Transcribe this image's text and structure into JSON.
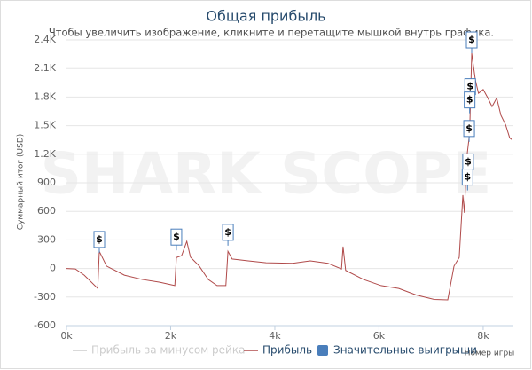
{
  "chart_data": {
    "type": "line",
    "title": "Общая прибыль",
    "subtitle": "Чтобы увеличить изображение, кликните и перетащите мышкой внутрь графика.",
    "watermark": "SHARK SCOPE",
    "y_label": "Суммарный итог (USD)",
    "x_label": "Номер игры",
    "xlim": [
      0,
      8580
    ],
    "ylim": [
      -600,
      2400
    ],
    "xticks": [
      {
        "value": 0,
        "label": "0k"
      },
      {
        "value": 2000,
        "label": "2k"
      },
      {
        "value": 4000,
        "label": "4k"
      },
      {
        "value": 6000,
        "label": "6k"
      },
      {
        "value": 8000,
        "label": "8k"
      }
    ],
    "yticks": [
      -600,
      -300,
      0,
      300,
      600,
      900,
      {
        "value": 1200,
        "label": "1.2K"
      },
      {
        "value": 1500,
        "label": "1.5K"
      },
      {
        "value": 1800,
        "label": "1.8K"
      },
      {
        "value": 2100,
        "label": "2.1K"
      },
      {
        "value": 2400,
        "label": "2.4K"
      }
    ],
    "grid": true,
    "series": [
      {
        "name": "Прибыль за минусом рейка",
        "color": "#cccccc",
        "visible": false
      },
      {
        "name": "Прибыль",
        "color": "#b04a4a",
        "type": "line",
        "x": [
          0,
          170,
          340,
          600,
          630,
          770,
          1110,
          1450,
          1790,
          2080,
          2110,
          2210,
          2310,
          2380,
          2550,
          2720,
          2890,
          3060,
          3100,
          3180,
          3490,
          3830,
          4340,
          4680,
          5020,
          5280,
          5310,
          5360,
          5700,
          6040,
          6380,
          6720,
          7060,
          7320,
          7440,
          7540,
          7610,
          7640,
          7680,
          7740,
          7780,
          7850,
          7910,
          8000,
          8090,
          8170,
          8260,
          8340,
          8430,
          8510,
          8560
        ],
        "values": [
          0,
          -5,
          -70,
          -210,
          180,
          25,
          -70,
          -115,
          -145,
          -180,
          115,
          135,
          285,
          120,
          25,
          -115,
          -180,
          -180,
          180,
          100,
          80,
          60,
          55,
          80,
          55,
          -5,
          230,
          -20,
          -115,
          -180,
          -210,
          -280,
          -325,
          -330,
          25,
          115,
          770,
          585,
          1140,
          1420,
          2260,
          1980,
          1840,
          1880,
          1790,
          1700,
          1790,
          1610,
          1510,
          1370,
          1350
        ]
      },
      {
        "name": "Значительные выигрыши",
        "color": "#4a7ebb",
        "type": "flag",
        "text": "$",
        "x": [
          630,
          2110,
          3100,
          7780,
          7750,
          7740,
          7730,
          7710,
          7700
        ],
        "values": [
          165,
          190,
          240,
          2260,
          1770,
          1630,
          1330,
          980,
          820
        ]
      }
    ]
  }
}
